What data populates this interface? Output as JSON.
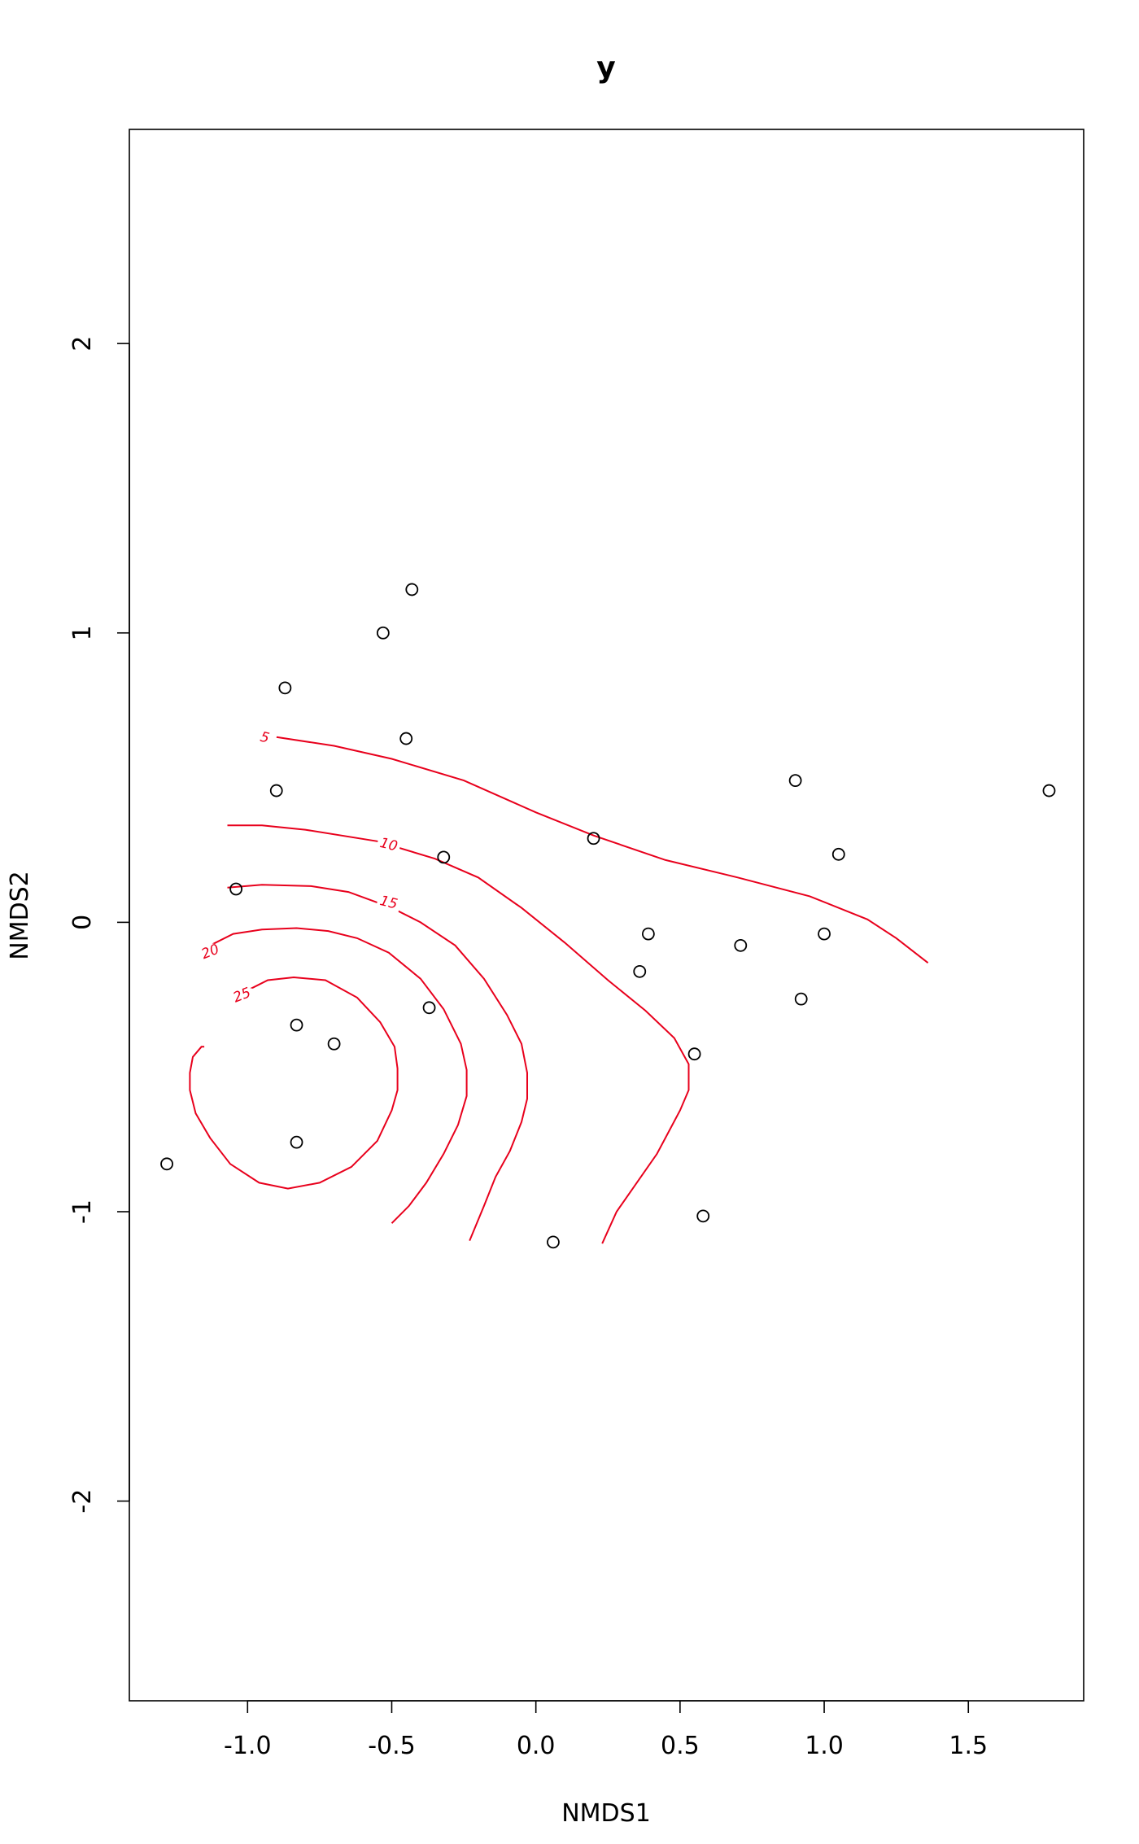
{
  "chart_data": {
    "type": "scatter",
    "title": "y",
    "xlabel": "NMDS1",
    "ylabel": "NMDS2",
    "xlim": [
      -1.41,
      1.9
    ],
    "ylim": [
      -2.69,
      2.74
    ],
    "x_ticks": [
      -1.0,
      -0.5,
      0.0,
      0.5,
      1.0,
      1.5
    ],
    "x_tick_labels": [
      "-1.0",
      "-0.5",
      "0.0",
      "0.5",
      "1.0",
      "1.5"
    ],
    "y_ticks": [
      -2,
      -1,
      0,
      1,
      2
    ],
    "y_tick_labels": [
      "-2",
      "-1",
      "0",
      "1",
      "2"
    ],
    "grid": false,
    "point_color": "#000000",
    "contour_color": "#e8001c",
    "points": [
      {
        "x": -0.43,
        "y": 1.15
      },
      {
        "x": -0.53,
        "y": 1.0
      },
      {
        "x": -0.87,
        "y": 0.81
      },
      {
        "x": -0.45,
        "y": 0.635
      },
      {
        "x": -0.9,
        "y": 0.455
      },
      {
        "x": 0.2,
        "y": 0.29
      },
      {
        "x": -0.32,
        "y": 0.225
      },
      {
        "x": -1.04,
        "y": 0.115
      },
      {
        "x": 0.9,
        "y": 0.49
      },
      {
        "x": 1.78,
        "y": 0.455
      },
      {
        "x": 1.05,
        "y": 0.235
      },
      {
        "x": 0.39,
        "y": -0.04
      },
      {
        "x": 0.36,
        "y": -0.17
      },
      {
        "x": 0.71,
        "y": -0.08
      },
      {
        "x": 1.0,
        "y": -0.04
      },
      {
        "x": 0.92,
        "y": -0.265
      },
      {
        "x": -0.37,
        "y": -0.295
      },
      {
        "x": -0.83,
        "y": -0.355
      },
      {
        "x": -0.7,
        "y": -0.42
      },
      {
        "x": 0.55,
        "y": -0.455
      },
      {
        "x": -0.83,
        "y": -0.76
      },
      {
        "x": -1.28,
        "y": -0.835
      },
      {
        "x": 0.58,
        "y": -1.015
      },
      {
        "x": 0.06,
        "y": -1.105
      }
    ],
    "contours": [
      {
        "level": "5",
        "label_at": {
          "x": -0.94,
          "y": 0.64
        },
        "path": [
          [
            -0.9,
            0.64
          ],
          [
            -0.7,
            0.61
          ],
          [
            -0.5,
            0.565
          ],
          [
            -0.25,
            0.49
          ],
          [
            0.0,
            0.38
          ],
          [
            0.2,
            0.3
          ],
          [
            0.45,
            0.215
          ],
          [
            0.7,
            0.155
          ],
          [
            0.95,
            0.09
          ],
          [
            1.15,
            0.01
          ],
          [
            1.25,
            -0.055
          ],
          [
            1.36,
            -0.14
          ]
        ]
      },
      {
        "level": "10",
        "label_at": {
          "x": -0.51,
          "y": 0.27
        },
        "path": [
          [
            -1.07,
            0.335
          ],
          [
            -0.95,
            0.335
          ],
          [
            -0.8,
            0.32
          ],
          [
            -0.55,
            0.28
          ],
          [
            -0.35,
            0.22
          ],
          [
            -0.2,
            0.155
          ],
          [
            -0.05,
            0.05
          ],
          [
            0.1,
            -0.07
          ],
          [
            0.25,
            -0.2
          ],
          [
            0.38,
            -0.305
          ],
          [
            0.48,
            -0.4
          ],
          [
            0.53,
            -0.49
          ],
          [
            0.53,
            -0.58
          ],
          [
            0.5,
            -0.65
          ],
          [
            0.42,
            -0.8
          ],
          [
            0.35,
            -0.9
          ],
          [
            0.28,
            -1.0
          ],
          [
            0.23,
            -1.11
          ]
        ]
      },
      {
        "level": "15",
        "label_at": {
          "x": -0.51,
          "y": 0.07
        },
        "path": [
          [
            -1.07,
            0.12
          ],
          [
            -0.95,
            0.13
          ],
          [
            -0.78,
            0.125
          ],
          [
            -0.65,
            0.105
          ],
          [
            -0.5,
            0.05
          ],
          [
            -0.4,
            0.0
          ],
          [
            -0.28,
            -0.08
          ],
          [
            -0.18,
            -0.195
          ],
          [
            -0.1,
            -0.32
          ],
          [
            -0.05,
            -0.42
          ],
          [
            -0.03,
            -0.52
          ],
          [
            -0.03,
            -0.61
          ],
          [
            -0.05,
            -0.69
          ],
          [
            -0.09,
            -0.79
          ],
          [
            -0.14,
            -0.88
          ],
          [
            -0.18,
            -0.98
          ],
          [
            -0.23,
            -1.1
          ]
        ]
      },
      {
        "level": "20",
        "label_at": {
          "x": -1.13,
          "y": -0.1
        },
        "path": [
          [
            -1.13,
            -0.08
          ],
          [
            -1.05,
            -0.04
          ],
          [
            -0.95,
            -0.025
          ],
          [
            -0.83,
            -0.02
          ],
          [
            -0.72,
            -0.03
          ],
          [
            -0.62,
            -0.055
          ],
          [
            -0.51,
            -0.105
          ],
          [
            -0.4,
            -0.195
          ],
          [
            -0.32,
            -0.3
          ],
          [
            -0.26,
            -0.42
          ],
          [
            -0.24,
            -0.51
          ],
          [
            -0.24,
            -0.6
          ],
          [
            -0.27,
            -0.7
          ],
          [
            -0.32,
            -0.8
          ],
          [
            -0.38,
            -0.9
          ],
          [
            -0.44,
            -0.98
          ],
          [
            -0.5,
            -1.04
          ]
        ]
      },
      {
        "level": "25",
        "label_at": {
          "x": -1.02,
          "y": -0.25
        },
        "path": [
          [
            -0.99,
            -0.23
          ],
          [
            -0.93,
            -0.2
          ],
          [
            -0.84,
            -0.19
          ],
          [
            -0.73,
            -0.2
          ],
          [
            -0.62,
            -0.26
          ],
          [
            -0.54,
            -0.345
          ],
          [
            -0.49,
            -0.43
          ],
          [
            -0.48,
            -0.505
          ],
          [
            -0.48,
            -0.58
          ],
          [
            -0.5,
            -0.65
          ],
          [
            -0.55,
            -0.755
          ],
          [
            -0.64,
            -0.845
          ],
          [
            -0.75,
            -0.9
          ],
          [
            -0.86,
            -0.92
          ],
          [
            -0.96,
            -0.9
          ],
          [
            -1.06,
            -0.835
          ],
          [
            -1.13,
            -0.745
          ],
          [
            -1.18,
            -0.66
          ],
          [
            -1.2,
            -0.58
          ],
          [
            -1.2,
            -0.52
          ],
          [
            -1.19,
            -0.465
          ],
          [
            -1.16,
            -0.43
          ],
          [
            -1.15,
            -0.43
          ]
        ]
      }
    ]
  }
}
